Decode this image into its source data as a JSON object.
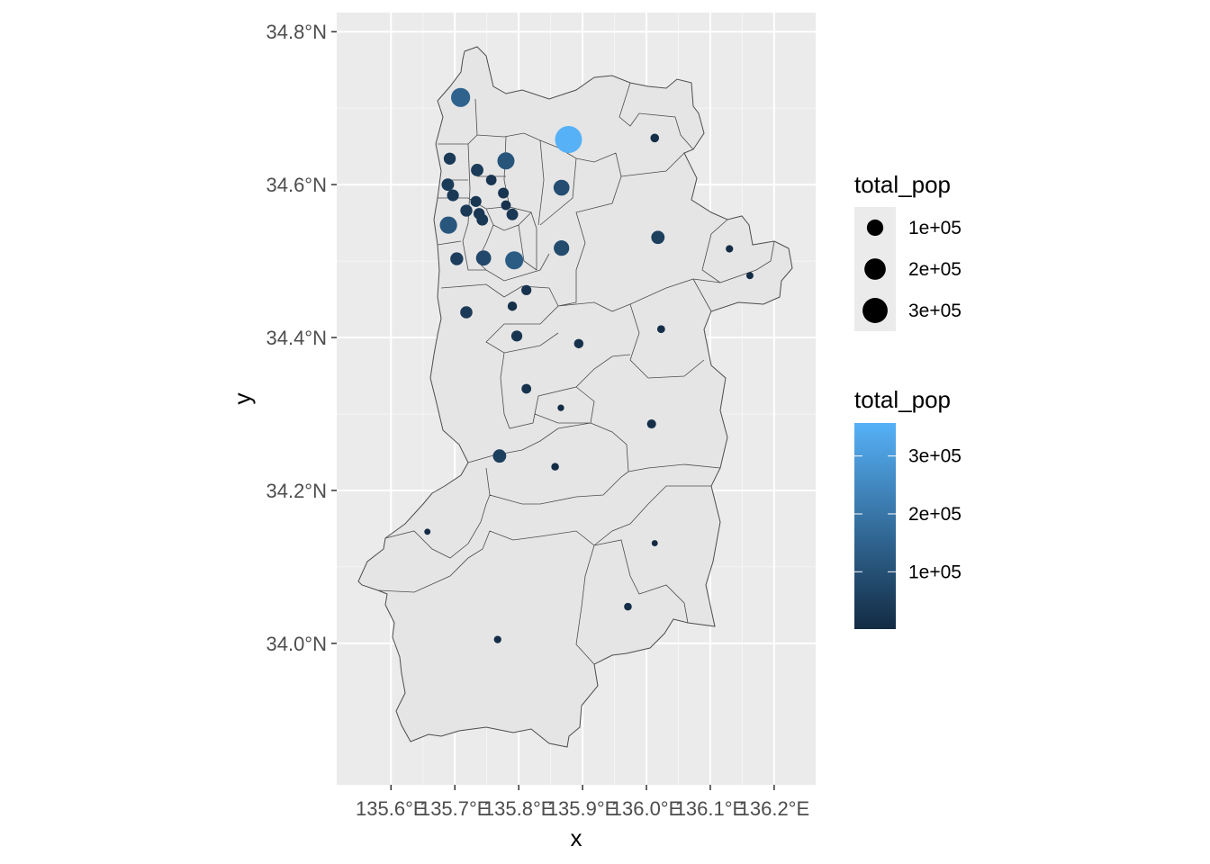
{
  "chart_data": {
    "type": "scatter",
    "title": "",
    "xlabel": "x",
    "ylabel": "y",
    "xlim": [
      135.515,
      136.265
    ],
    "ylim": [
      33.815,
      34.825
    ],
    "x_ticks": [
      135.6,
      135.7,
      135.8,
      135.9,
      136.0,
      136.1,
      136.2
    ],
    "x_tick_labels": [
      "135.6°E",
      "135.7°E",
      "135.8°E",
      "135.9°E",
      "136.0°E",
      "136.1°E",
      "136.2°E"
    ],
    "y_ticks": [
      34.0,
      34.2,
      34.4,
      34.6,
      34.8
    ],
    "y_tick_labels": [
      "34.0°N",
      "34.2°N",
      "34.4°N",
      "34.6°N",
      "34.8°N"
    ],
    "grid": true,
    "panel_background": "#ebebeb",
    "region_fill": "#e5e5e5",
    "region_stroke": "#4d4d4d",
    "color_low": "#132b43",
    "color_high": "#56b1f7",
    "points": [
      {
        "lon": 135.878,
        "lat": 34.659,
        "total_pop": 357000
      },
      {
        "lon": 135.709,
        "lat": 34.714,
        "total_pop": 150000
      },
      {
        "lon": 135.793,
        "lat": 34.501,
        "total_pop": 130000
      },
      {
        "lon": 135.69,
        "lat": 34.547,
        "total_pop": 115000
      },
      {
        "lon": 135.78,
        "lat": 34.631,
        "total_pop": 112000
      },
      {
        "lon": 135.867,
        "lat": 34.596,
        "total_pop": 92000
      },
      {
        "lon": 135.867,
        "lat": 34.517,
        "total_pop": 85000
      },
      {
        "lon": 135.745,
        "lat": 34.504,
        "total_pop": 80000
      },
      {
        "lon": 135.77,
        "lat": 34.245,
        "total_pop": 55000
      },
      {
        "lon": 136.018,
        "lat": 34.531,
        "total_pop": 55000
      },
      {
        "lon": 135.703,
        "lat": 34.503,
        "total_pop": 50000
      },
      {
        "lon": 135.689,
        "lat": 34.6,
        "total_pop": 45000
      },
      {
        "lon": 135.692,
        "lat": 34.634,
        "total_pop": 40000
      },
      {
        "lon": 135.735,
        "lat": 34.619,
        "total_pop": 45000
      },
      {
        "lon": 135.718,
        "lat": 34.433,
        "total_pop": 42000
      },
      {
        "lon": 135.697,
        "lat": 34.586,
        "total_pop": 38000
      },
      {
        "lon": 135.718,
        "lat": 34.566,
        "total_pop": 40000
      },
      {
        "lon": 135.743,
        "lat": 34.554,
        "total_pop": 35000
      },
      {
        "lon": 135.738,
        "lat": 34.562,
        "total_pop": 32000
      },
      {
        "lon": 135.79,
        "lat": 34.561,
        "total_pop": 36000
      },
      {
        "lon": 135.733,
        "lat": 34.578,
        "total_pop": 30000
      },
      {
        "lon": 135.776,
        "lat": 34.589,
        "total_pop": 28000
      },
      {
        "lon": 135.757,
        "lat": 34.606,
        "total_pop": 26000
      },
      {
        "lon": 135.797,
        "lat": 34.402,
        "total_pop": 30000
      },
      {
        "lon": 135.812,
        "lat": 34.462,
        "total_pop": 22000
      },
      {
        "lon": 135.78,
        "lat": 34.573,
        "total_pop": 20000
      },
      {
        "lon": 135.79,
        "lat": 34.441,
        "total_pop": 17000
      },
      {
        "lon": 135.812,
        "lat": 34.333,
        "total_pop": 19000
      },
      {
        "lon": 135.894,
        "lat": 34.392,
        "total_pop": 17000
      },
      {
        "lon": 136.008,
        "lat": 34.287,
        "total_pop": 15000
      },
      {
        "lon": 136.013,
        "lat": 34.661,
        "total_pop": 12000
      },
      {
        "lon": 136.023,
        "lat": 34.411,
        "total_pop": 8000
      },
      {
        "lon": 135.857,
        "lat": 34.231,
        "total_pop": 7000
      },
      {
        "lon": 135.971,
        "lat": 34.048,
        "total_pop": 7000
      },
      {
        "lon": 136.13,
        "lat": 34.516,
        "total_pop": 6000
      },
      {
        "lon": 135.767,
        "lat": 34.005,
        "total_pop": 6000
      },
      {
        "lon": 136.162,
        "lat": 34.481,
        "total_pop": 5000
      },
      {
        "lon": 135.866,
        "lat": 34.308,
        "total_pop": 3000
      },
      {
        "lon": 136.013,
        "lat": 34.131,
        "total_pop": 2000
      },
      {
        "lon": 135.657,
        "lat": 34.146,
        "total_pop": 2000
      }
    ],
    "size_legend": {
      "title": "total_pop",
      "entries": [
        {
          "label": "1e+05",
          "value": 100000
        },
        {
          "label": "2e+05",
          "value": 200000
        },
        {
          "label": "3e+05",
          "value": 300000
        }
      ]
    },
    "color_legend": {
      "title": "total_pop",
      "min": 1000,
      "max": 357000,
      "ticks": [
        {
          "label": "1e+05",
          "value": 100000
        },
        {
          "label": "2e+05",
          "value": 200000
        },
        {
          "label": "3e+05",
          "value": 300000
        }
      ]
    }
  }
}
